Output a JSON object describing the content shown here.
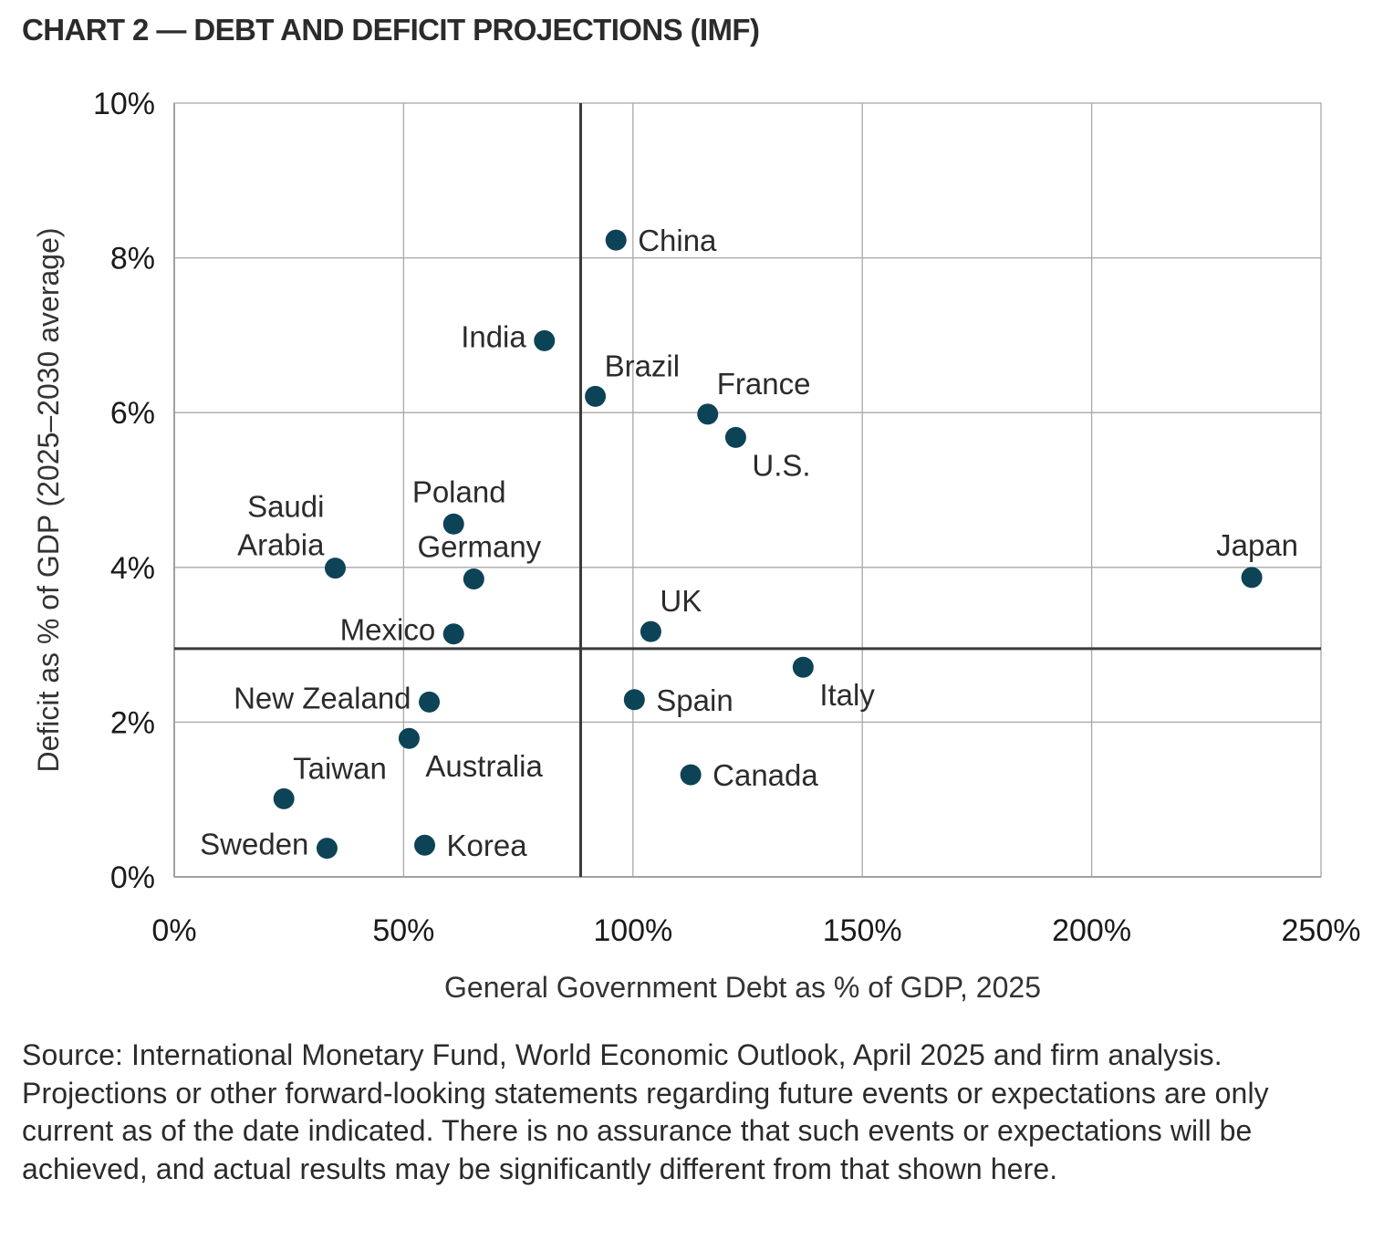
{
  "title": "CHART 2 — DEBT AND DEFICIT PROJECTIONS (IMF)",
  "source_note": "Source: International Monetary Fund, World Economic Outlook, April 2025 and firm analysis. Projections or other forward-looking statements regarding future events or expectations are only current as of the date indicated. There is no assurance that such events or expectations will be achieved, and actual results may be significantly different from that shown here.",
  "colors": {
    "marker": "#0d4356",
    "grid": "#a8a8a8",
    "axis": "#7a7a7a",
    "reference_line": "#3a3a3a"
  },
  "chart_data": {
    "type": "scatter",
    "title": "CHART 2 — DEBT AND DEFICIT PROJECTIONS (IMF)",
    "xlabel": "General Government Debt as % of GDP, 2025",
    "ylabel": "Deficit as % of GDP (2025–2030 average)",
    "xlim": [
      0,
      250
    ],
    "ylim": [
      0,
      10
    ],
    "x_ticks": [
      0,
      50,
      100,
      150,
      200,
      250
    ],
    "y_ticks": [
      0,
      2,
      4,
      6,
      8,
      10
    ],
    "x_tick_labels": [
      "0%",
      "50%",
      "100%",
      "150%",
      "200%",
      "250%"
    ],
    "y_tick_labels": [
      "0%",
      "2%",
      "4%",
      "6%",
      "8%",
      "10%"
    ],
    "grid": true,
    "reference_lines": {
      "x": 88.6,
      "y": 2.95
    },
    "points": [
      {
        "label": "China",
        "x": 96.3,
        "y": 8.23,
        "label_pos": "right"
      },
      {
        "label": "India",
        "x": 80.7,
        "y": 6.93,
        "label_pos": "left"
      },
      {
        "label": "Brazil",
        "x": 91.8,
        "y": 6.21,
        "label_pos": "above-right"
      },
      {
        "label": "France",
        "x": 116.3,
        "y": 5.98,
        "label_pos": "above-right"
      },
      {
        "label": "U.S.",
        "x": 122.4,
        "y": 5.68,
        "label_pos": "below-right"
      },
      {
        "label": "Poland",
        "x": 60.9,
        "y": 4.56,
        "label_pos": "above"
      },
      {
        "label": "Saudi Arabia",
        "x": 35.1,
        "y": 3.99,
        "label_pos": "above-left"
      },
      {
        "label": "Germany",
        "x": 65.3,
        "y": 3.85,
        "label_pos": "above"
      },
      {
        "label": "Japan",
        "x": 234.9,
        "y": 3.87,
        "label_pos": "above"
      },
      {
        "label": "Mexico",
        "x": 60.9,
        "y": 3.14,
        "label_pos": "left"
      },
      {
        "label": "UK",
        "x": 103.9,
        "y": 3.17,
        "label_pos": "above-right"
      },
      {
        "label": "Italy",
        "x": 137.1,
        "y": 2.71,
        "label_pos": "below-right"
      },
      {
        "label": "New Zealand",
        "x": 55.6,
        "y": 2.26,
        "label_pos": "left"
      },
      {
        "label": "Spain",
        "x": 100.3,
        "y": 2.29,
        "label_pos": "right"
      },
      {
        "label": "Australia",
        "x": 51.2,
        "y": 1.79,
        "label_pos": "below-right"
      },
      {
        "label": "Canada",
        "x": 112.6,
        "y": 1.32,
        "label_pos": "right"
      },
      {
        "label": "Taiwan",
        "x": 23.9,
        "y": 1.01,
        "label_pos": "above-right"
      },
      {
        "label": "Sweden",
        "x": 33.3,
        "y": 0.37,
        "label_pos": "left"
      },
      {
        "label": "Korea",
        "x": 54.6,
        "y": 0.41,
        "label_pos": "right"
      }
    ]
  }
}
